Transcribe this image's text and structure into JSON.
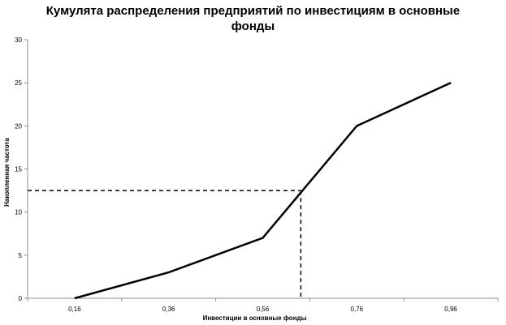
{
  "chart_data": {
    "type": "line",
    "title_lines": [
      "Кумулята распределения предприятий по инвестициям в основные",
      "фонды"
    ],
    "xlabel": "Инвестиции в основные фонды",
    "ylabel": "Накопленная частота",
    "x_ticks": [
      "0,16",
      "0,36",
      "0,56",
      "0,76",
      "0,96"
    ],
    "y_ticks": [
      "0",
      "5",
      "10",
      "15",
      "20",
      "25",
      "30"
    ],
    "xlim": [
      0.06,
      1.06
    ],
    "ylim": [
      0,
      30
    ],
    "series": [
      {
        "x": [
          0.16,
          0.36,
          0.56,
          0.76,
          0.96
        ],
        "y": [
          0,
          3,
          7,
          20,
          25
        ]
      }
    ],
    "median_guide": {
      "x": 0.641,
      "y": 12.5,
      "style": "dashed"
    },
    "grid": false,
    "legend": "none"
  }
}
